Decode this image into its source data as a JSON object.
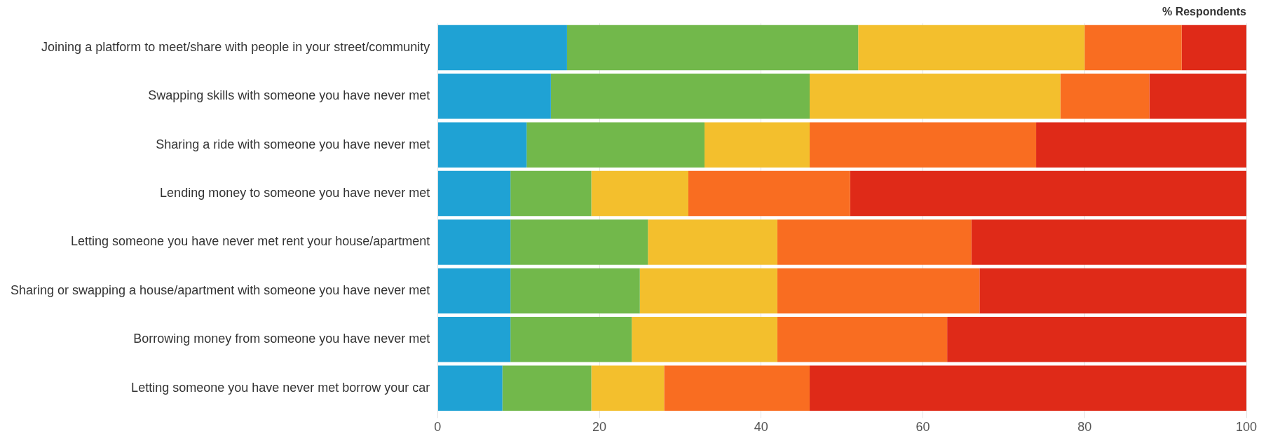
{
  "chart_data": {
    "type": "bar",
    "orientation": "horizontal",
    "stacked": true,
    "xlabel": "% Respondents",
    "categories": [
      "Joining a platform to meet/share with people in your street/community",
      "Swapping skills with someone you have never met",
      "Sharing a ride with someone you have never met",
      "Lending money to someone you have never met",
      "Letting someone you have never met rent your house/apartment",
      "Sharing or swapping a house/apartment with someone you have never met",
      "Borrowing money from someone you have never met",
      "Letting someone you have never met borrow your car"
    ],
    "series": [
      {
        "color": "#1fa2d4",
        "values": [
          16,
          14,
          11,
          9,
          9,
          9,
          9,
          8
        ]
      },
      {
        "color": "#72b84b",
        "values": [
          36,
          32,
          22,
          10,
          17,
          16,
          15,
          11
        ]
      },
      {
        "color": "#f3bf2d",
        "values": [
          28,
          31,
          13,
          12,
          16,
          17,
          18,
          9
        ]
      },
      {
        "color": "#f96d21",
        "values": [
          12,
          11,
          28,
          20,
          24,
          25,
          21,
          18
        ]
      },
      {
        "color": "#df2a18",
        "values": [
          8,
          12,
          26,
          49,
          34,
          33,
          37,
          54
        ]
      }
    ],
    "xlim": [
      0,
      100
    ],
    "xticks": [
      0,
      20,
      40,
      60,
      80,
      100
    ],
    "grid": "x",
    "legend": false
  }
}
